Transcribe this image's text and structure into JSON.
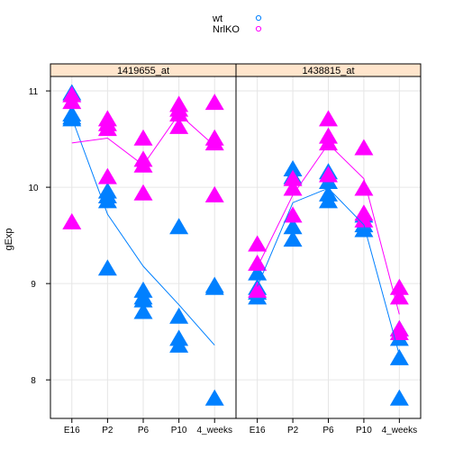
{
  "chart_data": {
    "type": "scatter",
    "ylabel": "gExp",
    "yticks": [
      8,
      9,
      10,
      11
    ],
    "ylim": [
      7.6,
      11.15
    ],
    "categories": [
      "E16",
      "P2",
      "P6",
      "P10",
      "4_weeks"
    ],
    "legend": {
      "placement": "top-center",
      "entries": [
        {
          "name": "wt",
          "color": "#0080ff"
        },
        {
          "name": "NrlKO",
          "color": "#ff00ff"
        }
      ]
    },
    "panels": [
      {
        "title": "1419655_at",
        "series": [
          {
            "name": "wt",
            "color": "#0080ff",
            "points": [
              [
                "E16",
                10.97
              ],
              [
                "E16",
                10.75
              ],
              [
                "E16",
                10.72
              ],
              [
                "E16",
                10.7
              ],
              [
                "P2",
                9.95
              ],
              [
                "P2",
                9.9
              ],
              [
                "P2",
                9.85
              ],
              [
                "P2",
                9.15
              ],
              [
                "P6",
                8.92
              ],
              [
                "P6",
                8.85
              ],
              [
                "P6",
                8.82
              ],
              [
                "P6",
                8.7
              ],
              [
                "P10",
                9.58
              ],
              [
                "P10",
                8.65
              ],
              [
                "P10",
                8.42
              ],
              [
                "P10",
                8.35
              ],
              [
                "4_weeks",
                8.97
              ],
              [
                "4_weeks",
                8.95
              ],
              [
                "4_weeks",
                7.8
              ]
            ],
            "trend": [
              [
                "E16",
                10.72
              ],
              [
                "P2",
                9.72
              ],
              [
                "P6",
                9.18
              ],
              [
                "P10",
                8.78
              ],
              [
                "4_weeks",
                8.36
              ]
            ]
          },
          {
            "name": "NrlKO",
            "color": "#ff00ff",
            "points": [
              [
                "E16",
                10.95
              ],
              [
                "E16",
                10.88
              ],
              [
                "E16",
                9.63
              ],
              [
                "P2",
                10.7
              ],
              [
                "P2",
                10.65
              ],
              [
                "P2",
                10.6
              ],
              [
                "P2",
                10.1
              ],
              [
                "P6",
                10.5
              ],
              [
                "P6",
                10.28
              ],
              [
                "P6",
                10.22
              ],
              [
                "P6",
                9.93
              ],
              [
                "P10",
                10.85
              ],
              [
                "P10",
                10.8
              ],
              [
                "P10",
                10.75
              ],
              [
                "P10",
                10.62
              ],
              [
                "4_weeks",
                10.87
              ],
              [
                "4_weeks",
                10.5
              ],
              [
                "4_weeks",
                10.45
              ],
              [
                "4_weeks",
                9.91
              ]
            ],
            "trend": [
              [
                "E16",
                10.46
              ],
              [
                "P2",
                10.51
              ],
              [
                "P6",
                10.23
              ],
              [
                "P10",
                10.76
              ],
              [
                "4_weeks",
                10.43
              ]
            ]
          }
        ]
      },
      {
        "title": "1438815_at",
        "series": [
          {
            "name": "wt",
            "color": "#0080ff",
            "points": [
              [
                "E16",
                9.1
              ],
              [
                "E16",
                8.95
              ],
              [
                "E16",
                8.9
              ],
              [
                "E16",
                8.85
              ],
              [
                "P2",
                10.18
              ],
              [
                "P2",
                10.1
              ],
              [
                "P2",
                9.58
              ],
              [
                "P2",
                9.45
              ],
              [
                "P6",
                10.15
              ],
              [
                "P6",
                10.05
              ],
              [
                "P6",
                9.92
              ],
              [
                "P6",
                9.85
              ],
              [
                "P10",
                9.7
              ],
              [
                "P10",
                9.6
              ],
              [
                "P10",
                9.55
              ],
              [
                "4_weeks",
                8.52
              ],
              [
                "4_weeks",
                8.42
              ],
              [
                "4_weeks",
                8.22
              ],
              [
                "4_weeks",
                7.8
              ]
            ],
            "trend": [
              [
                "E16",
                8.97
              ],
              [
                "P2",
                9.84
              ],
              [
                "P6",
                9.99
              ],
              [
                "P10",
                9.61
              ],
              [
                "4_weeks",
                8.26
              ]
            ]
          },
          {
            "name": "NrlKO",
            "color": "#ff00ff",
            "points": [
              [
                "E16",
                9.4
              ],
              [
                "E16",
                9.2
              ],
              [
                "E16",
                8.92
              ],
              [
                "P2",
                10.08
              ],
              [
                "P2",
                9.98
              ],
              [
                "P2",
                9.7
              ],
              [
                "P6",
                10.7
              ],
              [
                "P6",
                10.52
              ],
              [
                "P6",
                10.45
              ],
              [
                "P6",
                10.12
              ],
              [
                "P10",
                10.4
              ],
              [
                "P10",
                9.98
              ],
              [
                "P10",
                9.72
              ],
              [
                "P10",
                9.65
              ],
              [
                "4_weeks",
                8.95
              ],
              [
                "4_weeks",
                8.85
              ],
              [
                "4_weeks",
                8.52
              ],
              [
                "4_weeks",
                8.48
              ]
            ],
            "trend": [
              [
                "E16",
                9.17
              ],
              [
                "P2",
                9.92
              ],
              [
                "P6",
                10.45
              ],
              [
                "P10",
                10.09
              ],
              [
                "4_weeks",
                8.68
              ]
            ]
          }
        ]
      }
    ]
  }
}
